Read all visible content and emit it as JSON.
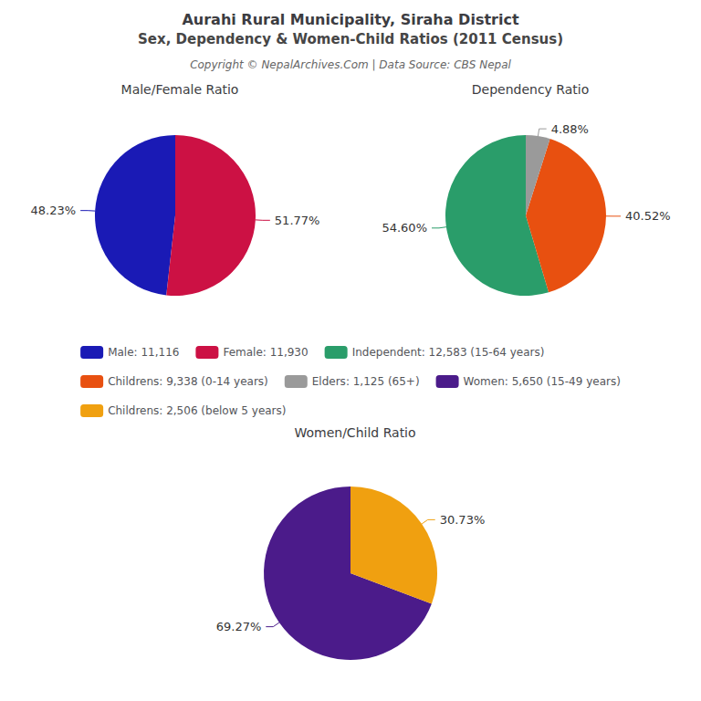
{
  "title": "Aurahi Rural Municipality, Siraha District",
  "subtitle": "Sex, Dependency & Women-Child Ratios (2011 Census)",
  "annotations": [
    "Copyright © NepalArchives.Com | Data Source: CBS Nepal"
  ],
  "legend": "center",
  "chart_data": [
    {
      "type": "pie",
      "title": "Male/Female Ratio",
      "categories": [
        "Male: 11,116",
        "Female: 11,930"
      ],
      "values": [
        48.23,
        51.77
      ],
      "value_labels": [
        "48.23%",
        "51.77%"
      ],
      "colors": [
        "#1a1ab5",
        "#cc1144"
      ],
      "data_labels": true
    },
    {
      "type": "pie",
      "title": "Dependency Ratio",
      "categories": [
        "Independent: 12,583 (15-64 years)",
        "Childrens: 9,338 (0-14 years)",
        "Elders: 1,125 (65+)"
      ],
      "values": [
        54.6,
        40.52,
        4.88
      ],
      "value_labels": [
        "54.60%",
        "40.52%",
        "4.88%"
      ],
      "colors": [
        "#2a9d6a",
        "#e85010",
        "#9a9a9a"
      ],
      "data_labels": true
    },
    {
      "type": "pie",
      "title": "Women/Child Ratio",
      "categories": [
        "Women: 5,650 (15-49 years)",
        "Childrens: 2,506 (below 5 years)"
      ],
      "values": [
        69.27,
        30.73
      ],
      "value_labels": [
        "69.27%",
        "30.73%"
      ],
      "colors": [
        "#4b1b8a",
        "#f0a010"
      ],
      "data_labels": true
    }
  ]
}
